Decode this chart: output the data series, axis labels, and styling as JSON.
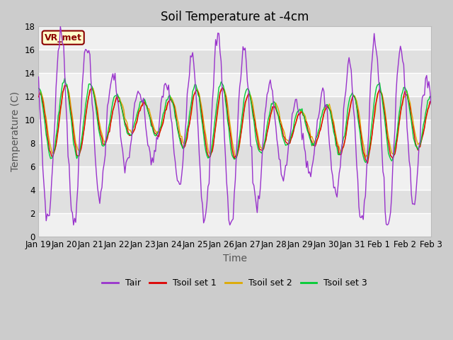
{
  "title": "Soil Temperature at -4cm",
  "xlabel": "Time",
  "ylabel": "Temperature (C)",
  "ylim": [
    0,
    18
  ],
  "yticks": [
    0,
    2,
    4,
    6,
    8,
    10,
    12,
    14,
    16,
    18
  ],
  "colors": {
    "Tair": "#9933CC",
    "Tsoil_set1": "#DD0000",
    "Tsoil_set2": "#DDAA00",
    "Tsoil_set3": "#00CC33"
  },
  "legend_labels": [
    "Tair",
    "Tsoil set 1",
    "Tsoil set 2",
    "Tsoil set 3"
  ],
  "annotation": "VR_met",
  "annotation_color": "#8B0000",
  "annotation_bg": "#FFFFCC",
  "x_tick_labels": [
    "Jan 19",
    "Jan 20",
    "Jan 21",
    "Jan 22",
    "Jan 23",
    "Jan 24",
    "Jan 25",
    "Jan 26",
    "Jan 27",
    "Jan 28",
    "Jan 29",
    "Jan 30",
    "Jan 31",
    "Feb 1",
    "Feb 2",
    "Feb 3"
  ],
  "title_fontsize": 12,
  "axis_label_fontsize": 10,
  "tick_fontsize": 8.5,
  "legend_fontsize": 9
}
